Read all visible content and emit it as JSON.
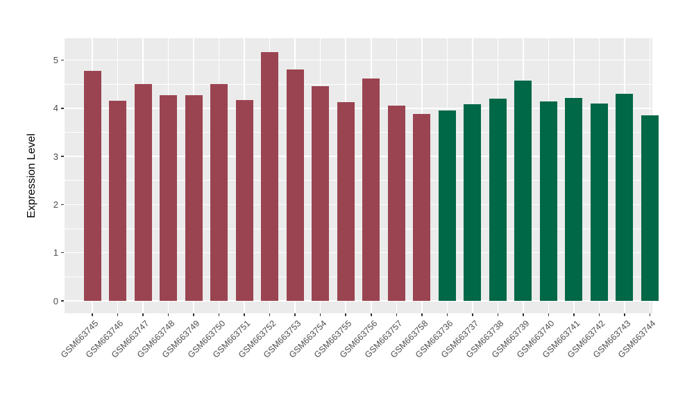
{
  "chart_data": {
    "type": "bar",
    "title": "",
    "ylabel": "Expression Level",
    "xlabel": "",
    "ylim": [
      0,
      5.42
    ],
    "yticks_major": [
      0,
      1,
      2,
      3,
      4,
      5
    ],
    "yticks_minor": [
      0.5,
      1.5,
      2.5,
      3.5,
      4.5
    ],
    "grid": "white major+minor horizontal lines and major vertical lines on grey panel",
    "legend_position": "none",
    "groups": [
      {
        "name": "sample-group-red",
        "color": "#9B4451"
      },
      {
        "name": "sample-group-green",
        "color": "#006747"
      }
    ],
    "bars": [
      {
        "label": "GSM663745",
        "value": 4.78,
        "group": 0
      },
      {
        "label": "GSM663746",
        "value": 4.16,
        "group": 0
      },
      {
        "label": "GSM663747",
        "value": 4.5,
        "group": 0
      },
      {
        "label": "GSM663748",
        "value": 4.27,
        "group": 0
      },
      {
        "label": "GSM663749",
        "value": 4.27,
        "group": 0
      },
      {
        "label": "GSM663750",
        "value": 4.5,
        "group": 0
      },
      {
        "label": "GSM663751",
        "value": 4.17,
        "group": 0
      },
      {
        "label": "GSM663752",
        "value": 5.16,
        "group": 0
      },
      {
        "label": "GSM663753",
        "value": 4.8,
        "group": 0
      },
      {
        "label": "GSM663754",
        "value": 4.46,
        "group": 0
      },
      {
        "label": "GSM663755",
        "value": 4.13,
        "group": 0
      },
      {
        "label": "GSM663756",
        "value": 4.62,
        "group": 0
      },
      {
        "label": "GSM663757",
        "value": 4.06,
        "group": 0
      },
      {
        "label": "GSM663758",
        "value": 3.88,
        "group": 0
      },
      {
        "label": "GSM663736",
        "value": 3.95,
        "group": 1
      },
      {
        "label": "GSM663737",
        "value": 4.08,
        "group": 1
      },
      {
        "label": "GSM663738",
        "value": 4.2,
        "group": 1
      },
      {
        "label": "GSM663739",
        "value": 4.58,
        "group": 1
      },
      {
        "label": "GSM663740",
        "value": 4.14,
        "group": 1
      },
      {
        "label": "GSM663741",
        "value": 4.22,
        "group": 1
      },
      {
        "label": "GSM663742",
        "value": 4.1,
        "group": 1
      },
      {
        "label": "GSM663743",
        "value": 4.3,
        "group": 1
      },
      {
        "label": "GSM663744",
        "value": 3.85,
        "group": 1
      }
    ]
  },
  "colors": {
    "figure_background": "#FFFFFF",
    "panel_background": "#EBEBEB",
    "gridline": "#FFFFFF",
    "axis_text": "#4D4D4D",
    "axis_title": "#000000",
    "tick_mark": "#333333",
    "bar_red": "#9B4451",
    "bar_green": "#006747"
  }
}
